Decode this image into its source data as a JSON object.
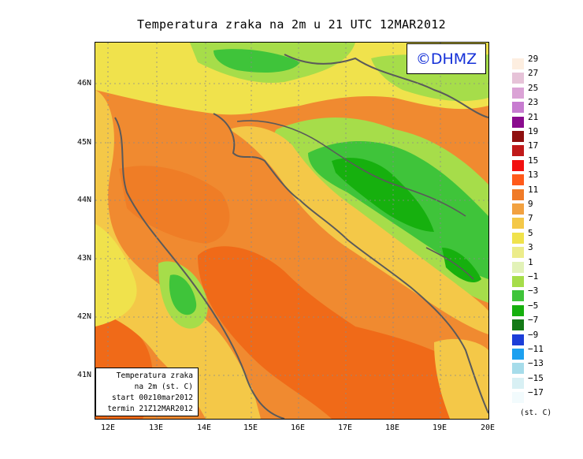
{
  "title": "Temperatura zraka na 2m u 21 UTC 12MAR2012",
  "logo_text": "©DHMZ",
  "info_box": {
    "line1": "Temperatura zraka",
    "line2": "na 2m (st. C)",
    "line3": "start 00z10mar2012",
    "line4": "termin 21Z12MAR2012"
  },
  "y_axis_ticks": [
    "46N",
    "45N",
    "44N",
    "43N",
    "42N",
    "41N"
  ],
  "x_axis_ticks": [
    "12E",
    "13E",
    "14E",
    "15E",
    "16E",
    "17E",
    "18E",
    "19E",
    "20E"
  ],
  "legend": {
    "unit": "(st. C)",
    "levels": [
      "29",
      "27",
      "25",
      "23",
      "21",
      "19",
      "17",
      "15",
      "13",
      "11",
      "9",
      "7",
      "5",
      "3",
      "1",
      "−1",
      "−3",
      "−5",
      "−7",
      "−9",
      "−11",
      "−13",
      "−15",
      "−17"
    ],
    "colors": [
      "#fdeee0",
      "#e6c3d8",
      "#dba3d6",
      "#c77cd0",
      "#8a0b8e",
      "#8f1010",
      "#c01a1a",
      "#f21010",
      "#ff5a1a",
      "#f07b28",
      "#f2a140",
      "#f4c848",
      "#f0e24c",
      "#ecec8a",
      "#e2f2b8",
      "#a6dd4a",
      "#3fc43a",
      "#16b00e",
      "#147a18",
      "#1c3ed8",
      "#1ca0f0",
      "#a6dcea",
      "#d8f0f4",
      "#f2fbfd"
    ]
  }
}
